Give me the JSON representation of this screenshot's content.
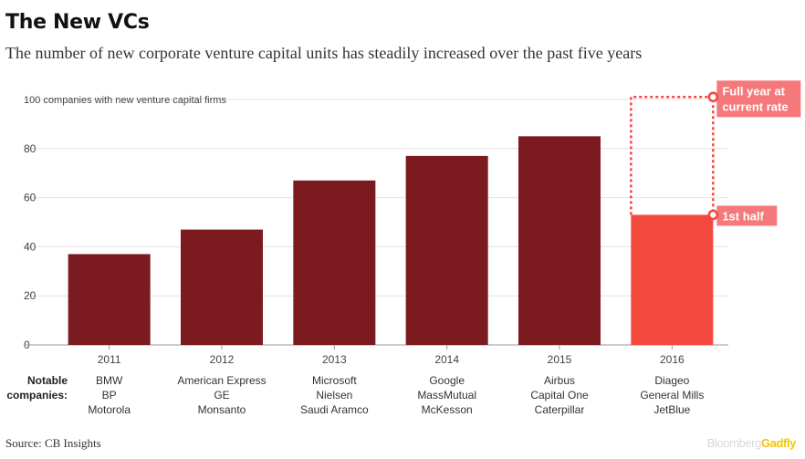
{
  "title": "The New VCs",
  "subtitle": "The number of new corporate venture capital units has steadily increased over the past five years",
  "source": "Source: CB Insights",
  "brand": {
    "part1": "Bloomberg",
    "part2": "Gadfly"
  },
  "colors": {
    "bar": "#7b1a1f",
    "highlight": "#f4473d",
    "callout": "#f5787a"
  },
  "notable_label_line1": "Notable",
  "notable_label_line2": "companies:",
  "chart_data": {
    "type": "bar",
    "ylabel": "100 companies with new venture capital firms",
    "ylim": [
      0,
      100
    ],
    "yticks": [
      0,
      20,
      40,
      60,
      80,
      100
    ],
    "categories": [
      "2011",
      "2012",
      "2013",
      "2014",
      "2015",
      "2016"
    ],
    "values": [
      37,
      47,
      67,
      77,
      85,
      53
    ],
    "projected": {
      "category": "2016",
      "value": 101,
      "label": "Full year at current rate"
    },
    "highlight_label": "1st half",
    "notable_companies": [
      [
        "BMW",
        "BP",
        "Motorola"
      ],
      [
        "American Express",
        "GE",
        "Monsanto"
      ],
      [
        "Microsoft",
        "Nielsen",
        "Saudi Aramco"
      ],
      [
        "Google",
        "MassMutual",
        "McKesson"
      ],
      [
        "Airbus",
        "Capital One",
        "Caterpillar"
      ],
      [
        "Diageo",
        "General Mills",
        "JetBlue"
      ]
    ]
  }
}
